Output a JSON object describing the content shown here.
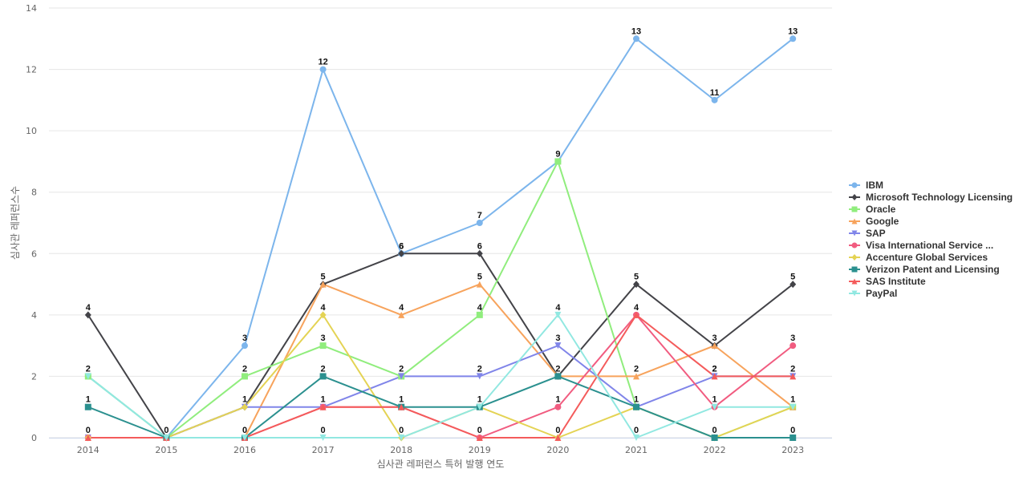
{
  "chart_data": {
    "type": "line",
    "title": "",
    "xlabel": "심사관 레퍼런스 특허 발행 연도",
    "ylabel": "심사관 레퍼런스수",
    "x": [
      "2014",
      "2015",
      "2016",
      "2017",
      "2018",
      "2019",
      "2020",
      "2021",
      "2022",
      "2023"
    ],
    "ylim": [
      0,
      14
    ],
    "yticks": [
      0,
      2,
      4,
      6,
      8,
      10,
      12,
      14
    ],
    "grid": true,
    "legend": "right",
    "series": [
      {
        "name": "IBM",
        "color": "#7cb5ec",
        "marker": "circle",
        "values": [
          2,
          0,
          3,
          12,
          6,
          7,
          9,
          13,
          11,
          13
        ]
      },
      {
        "name": "Microsoft Technology Licensing",
        "color": "#434348",
        "marker": "diamond",
        "values": [
          4,
          0,
          1,
          5,
          6,
          6,
          2,
          5,
          3,
          5
        ]
      },
      {
        "name": "Oracle",
        "color": "#90ed7d",
        "marker": "square",
        "values": [
          2,
          0,
          2,
          3,
          2,
          4,
          9,
          1,
          0,
          1
        ]
      },
      {
        "name": "Google",
        "color": "#f7a35c",
        "marker": "triangle",
        "values": [
          0,
          0,
          0,
          5,
          4,
          5,
          2,
          2,
          3,
          1
        ]
      },
      {
        "name": "SAP",
        "color": "#8085e9",
        "marker": "triangle-down",
        "values": [
          0,
          0,
          1,
          1,
          2,
          2,
          3,
          1,
          2,
          2
        ]
      },
      {
        "name": "Visa International Service ...",
        "color": "#f15c80",
        "marker": "circle",
        "values": [
          0,
          0,
          0,
          1,
          1,
          0,
          1,
          4,
          1,
          3
        ]
      },
      {
        "name": "Accenture Global Services",
        "color": "#e4d354",
        "marker": "diamond",
        "values": [
          0,
          0,
          1,
          4,
          0,
          1,
          0,
          1,
          0,
          1
        ]
      },
      {
        "name": "Verizon Patent and Licensing",
        "color": "#2b908f",
        "marker": "square",
        "values": [
          1,
          0,
          0,
          2,
          1,
          1,
          2,
          1,
          0,
          0
        ]
      },
      {
        "name": "SAS Institute",
        "color": "#f45b5b",
        "marker": "triangle",
        "values": [
          0,
          0,
          0,
          1,
          1,
          0,
          0,
          4,
          2,
          2
        ]
      },
      {
        "name": "PayPal",
        "color": "#91e8e1",
        "marker": "triangle-down",
        "values": [
          2,
          0,
          0,
          0,
          0,
          1,
          4,
          0,
          1,
          1
        ]
      }
    ],
    "data_labels": {
      "IBM": [
        2,
        0,
        3,
        12,
        6,
        7,
        9,
        13,
        11,
        13
      ],
      "Microsoft Technology Licensing": [
        4,
        null,
        1,
        5,
        6,
        6,
        2,
        5,
        3,
        5
      ],
      "Oracle": [
        null,
        null,
        2,
        3,
        2,
        4,
        null,
        null,
        null,
        1
      ],
      "Google": [
        null,
        null,
        null,
        null,
        4,
        5,
        null,
        2,
        null,
        null
      ],
      "SAP": [
        null,
        null,
        null,
        null,
        null,
        2,
        3,
        null,
        2,
        2
      ],
      "Visa International Service ...": [
        null,
        null,
        null,
        null,
        null,
        null,
        1,
        4,
        null,
        3
      ],
      "Accenture Global Services": [
        null,
        null,
        null,
        4,
        null,
        null,
        null,
        null,
        null,
        null
      ],
      "Verizon Patent and Licensing": [
        1,
        null,
        null,
        2,
        1,
        1,
        null,
        1,
        0,
        0
      ],
      "SAS Institute": [
        0,
        null,
        0,
        1,
        null,
        0,
        0,
        null,
        2,
        null
      ],
      "PayPal": [
        null,
        null,
        null,
        0,
        0,
        null,
        4,
        0,
        1,
        null
      ]
    }
  }
}
